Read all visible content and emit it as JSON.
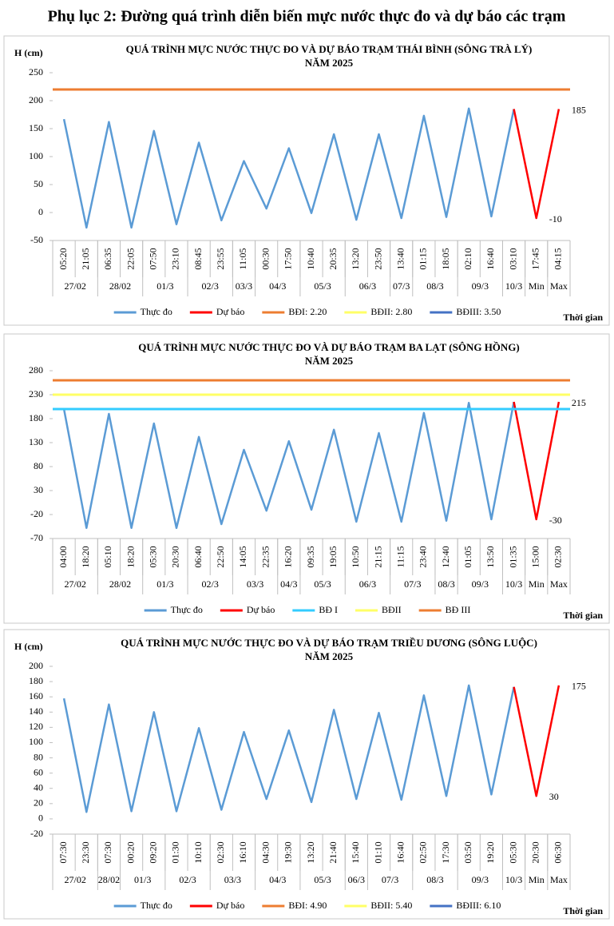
{
  "page_title": "Phụ lục 2: Đường quá trình diễn biến mực nước thực đo và dự báo các trạm",
  "chart_data": [
    {
      "type": "line",
      "title": "QUÁ TRÌNH MỰC NƯỚC THỰC ĐO VÀ DỰ BÁO TRẠM THÁI BÌNH (SÔNG TRÀ LÝ)",
      "subtitle": "NĂM 2025",
      "y_label": "H (cm)",
      "x_label": "Thời gian",
      "categories": [
        "05:20",
        "21:05",
        "06:35",
        "22:05",
        "07:50",
        "23:10",
        "08:45",
        "23:55",
        "11:05",
        "00:30",
        "17:50",
        "10:40",
        "20:35",
        "13:20",
        "23:50",
        "13:40",
        "01:15",
        "18:05",
        "02:10",
        "16:40",
        "03:10",
        "17:45",
        "04:15"
      ],
      "groups": [
        {
          "label": "27/02",
          "size": 2
        },
        {
          "label": "28/02",
          "size": 2
        },
        {
          "label": "01/3",
          "size": 2
        },
        {
          "label": "02/3",
          "size": 2
        },
        {
          "label": "03/3",
          "size": 1
        },
        {
          "label": "04/3",
          "size": 2
        },
        {
          "label": "05/3",
          "size": 2
        },
        {
          "label": "06/3",
          "size": 2
        },
        {
          "label": "07/3",
          "size": 1
        },
        {
          "label": "08/3",
          "size": 2
        },
        {
          "label": "09/3",
          "size": 2
        },
        {
          "label": "10/3",
          "size": 1
        },
        {
          "label": "Min",
          "size": 1
        },
        {
          "label": "Max",
          "size": 1
        }
      ],
      "ylim": [
        -50,
        250
      ],
      "yticks": [
        -50,
        0,
        50,
        100,
        150,
        200,
        250
      ],
      "series": [
        {
          "name": "Thực đo",
          "color": "#5b9bd5",
          "values": [
            167,
            -27,
            162,
            -27,
            146,
            -21,
            125,
            -14,
            92,
            7,
            115,
            -1,
            140,
            -13,
            140,
            -10,
            173,
            -8,
            186,
            -7,
            185,
            null,
            null
          ]
        },
        {
          "name": "Dự báo",
          "color": "#ff0000",
          "values": [
            null,
            null,
            null,
            null,
            null,
            null,
            null,
            null,
            null,
            null,
            null,
            null,
            null,
            null,
            null,
            null,
            null,
            null,
            null,
            null,
            185,
            -10,
            185
          ],
          "value_labels": [
            null,
            null,
            null,
            null,
            null,
            null,
            null,
            null,
            null,
            null,
            null,
            null,
            null,
            null,
            null,
            null,
            null,
            null,
            null,
            null,
            null,
            "-10",
            "185"
          ]
        },
        {
          "name": "BĐI: 2.20",
          "color": "#ed7d31",
          "level": 220
        },
        {
          "name": "BĐII: 2.80",
          "color": "#ffff66"
        },
        {
          "name": "BĐIII: 3.50",
          "color": "#4472c4"
        }
      ]
    },
    {
      "type": "line",
      "title": "QUÁ TRÌNH MỰC NƯỚC THỰC ĐO VÀ DỰ BÁO TRẠM BA LẠT (SÔNG HỒNG)",
      "subtitle": "NĂM 2025",
      "x_label": "Thời gian",
      "categories": [
        "04:00",
        "18:20",
        "05:10",
        "18:20",
        "05:30",
        "20:30",
        "06:40",
        "22:50",
        "14:05",
        "22:35",
        "16:20",
        "09:35",
        "19:05",
        "10:50",
        "21:15",
        "11:15",
        "23:40",
        "12:40",
        "01:05",
        "13:50",
        "01:35",
        "15:00",
        "02:30"
      ],
      "groups": [
        {
          "label": "27/02",
          "size": 2
        },
        {
          "label": "28/02",
          "size": 2
        },
        {
          "label": "01/3",
          "size": 2
        },
        {
          "label": "02/3",
          "size": 2
        },
        {
          "label": "03/3",
          "size": 2
        },
        {
          "label": "04/3",
          "size": 1
        },
        {
          "label": "05/3",
          "size": 2
        },
        {
          "label": "06/3",
          "size": 2
        },
        {
          "label": "07/3",
          "size": 2
        },
        {
          "label": "08/3",
          "size": 1
        },
        {
          "label": "09/3",
          "size": 2
        },
        {
          "label": "10/3",
          "size": 1
        },
        {
          "label": "Min",
          "size": 1
        },
        {
          "label": "Max",
          "size": 1
        }
      ],
      "ylim": [
        -70,
        280
      ],
      "yticks": [
        -70,
        -20,
        30,
        80,
        130,
        180,
        230,
        280
      ],
      "series": [
        {
          "name": "Thực đo",
          "color": "#5b9bd5",
          "values": [
            200,
            -48,
            190,
            -48,
            170,
            -48,
            142,
            -40,
            115,
            -12,
            133,
            -10,
            157,
            -35,
            150,
            -35,
            192,
            -33,
            213,
            -30,
            215,
            null,
            null
          ]
        },
        {
          "name": "Dự báo",
          "color": "#ff0000",
          "values": [
            null,
            null,
            null,
            null,
            null,
            null,
            null,
            null,
            null,
            null,
            null,
            null,
            null,
            null,
            null,
            null,
            null,
            null,
            null,
            null,
            215,
            -30,
            215
          ],
          "value_labels": [
            null,
            null,
            null,
            null,
            null,
            null,
            null,
            null,
            null,
            null,
            null,
            null,
            null,
            null,
            null,
            null,
            null,
            null,
            null,
            null,
            null,
            "-30",
            "215"
          ]
        },
        {
          "name": "BĐ I",
          "color": "#33ccff",
          "level": 200
        },
        {
          "name": "BĐII",
          "color": "#ffff66",
          "level": 230
        },
        {
          "name": "BĐ III",
          "color": "#ed7d31",
          "level": 260
        }
      ]
    },
    {
      "type": "line",
      "title": "QUÁ TRÌNH MỰC NƯỚC THỰC ĐO VÀ DỰ BÁO TRẠM TRIỀU DƯƠNG  (SÔNG LUỘC)",
      "subtitle": "NĂM 2025",
      "y_label": "H (cm)",
      "x_label": "Thời gian",
      "categories": [
        "07:30",
        "23:30",
        "07:30",
        "00:20",
        "09:20",
        "01:30",
        "10:10",
        "02:30",
        "16:10",
        "04:30",
        "19:30",
        "13:20",
        "21:40",
        "15:40",
        "01:10",
        "16:40",
        "02:50",
        "17:30",
        "03:50",
        "19:20",
        "05:30",
        "20:30",
        "06:30"
      ],
      "groups": [
        {
          "label": "27/02",
          "size": 2
        },
        {
          "label": "28/02",
          "size": 1
        },
        {
          "label": "01/3",
          "size": 2
        },
        {
          "label": "02/3",
          "size": 2
        },
        {
          "label": "03/3",
          "size": 2
        },
        {
          "label": "04/3",
          "size": 2
        },
        {
          "label": "05/3",
          "size": 2
        },
        {
          "label": "06/3",
          "size": 1
        },
        {
          "label": "07/3",
          "size": 2
        },
        {
          "label": "08/3",
          "size": 2
        },
        {
          "label": "09/3",
          "size": 2
        },
        {
          "label": "10/3",
          "size": 1
        },
        {
          "label": "Min",
          "size": 1
        },
        {
          "label": "Max",
          "size": 1
        }
      ],
      "ylim": [
        -20,
        200
      ],
      "yticks": [
        -20,
        0,
        20,
        40,
        60,
        80,
        100,
        120,
        140,
        160,
        180,
        200
      ],
      "series": [
        {
          "name": "Thực đo",
          "color": "#5b9bd5",
          "values": [
            158,
            9,
            150,
            10,
            140,
            10,
            119,
            12,
            114,
            26,
            116,
            22,
            143,
            26,
            139,
            25,
            162,
            30,
            175,
            32,
            173,
            null,
            null
          ]
        },
        {
          "name": "Dự báo",
          "color": "#ff0000",
          "values": [
            null,
            null,
            null,
            null,
            null,
            null,
            null,
            null,
            null,
            null,
            null,
            null,
            null,
            null,
            null,
            null,
            null,
            null,
            null,
            null,
            173,
            30,
            175
          ],
          "value_labels": [
            null,
            null,
            null,
            null,
            null,
            null,
            null,
            null,
            null,
            null,
            null,
            null,
            null,
            null,
            null,
            null,
            null,
            null,
            null,
            null,
            null,
            "30",
            "175"
          ]
        },
        {
          "name": "BĐI: 4.90",
          "color": "#ed7d31"
        },
        {
          "name": "BĐII: 5.40",
          "color": "#ffff66"
        },
        {
          "name": "BĐIII: 6.10",
          "color": "#4472c4"
        }
      ]
    }
  ]
}
